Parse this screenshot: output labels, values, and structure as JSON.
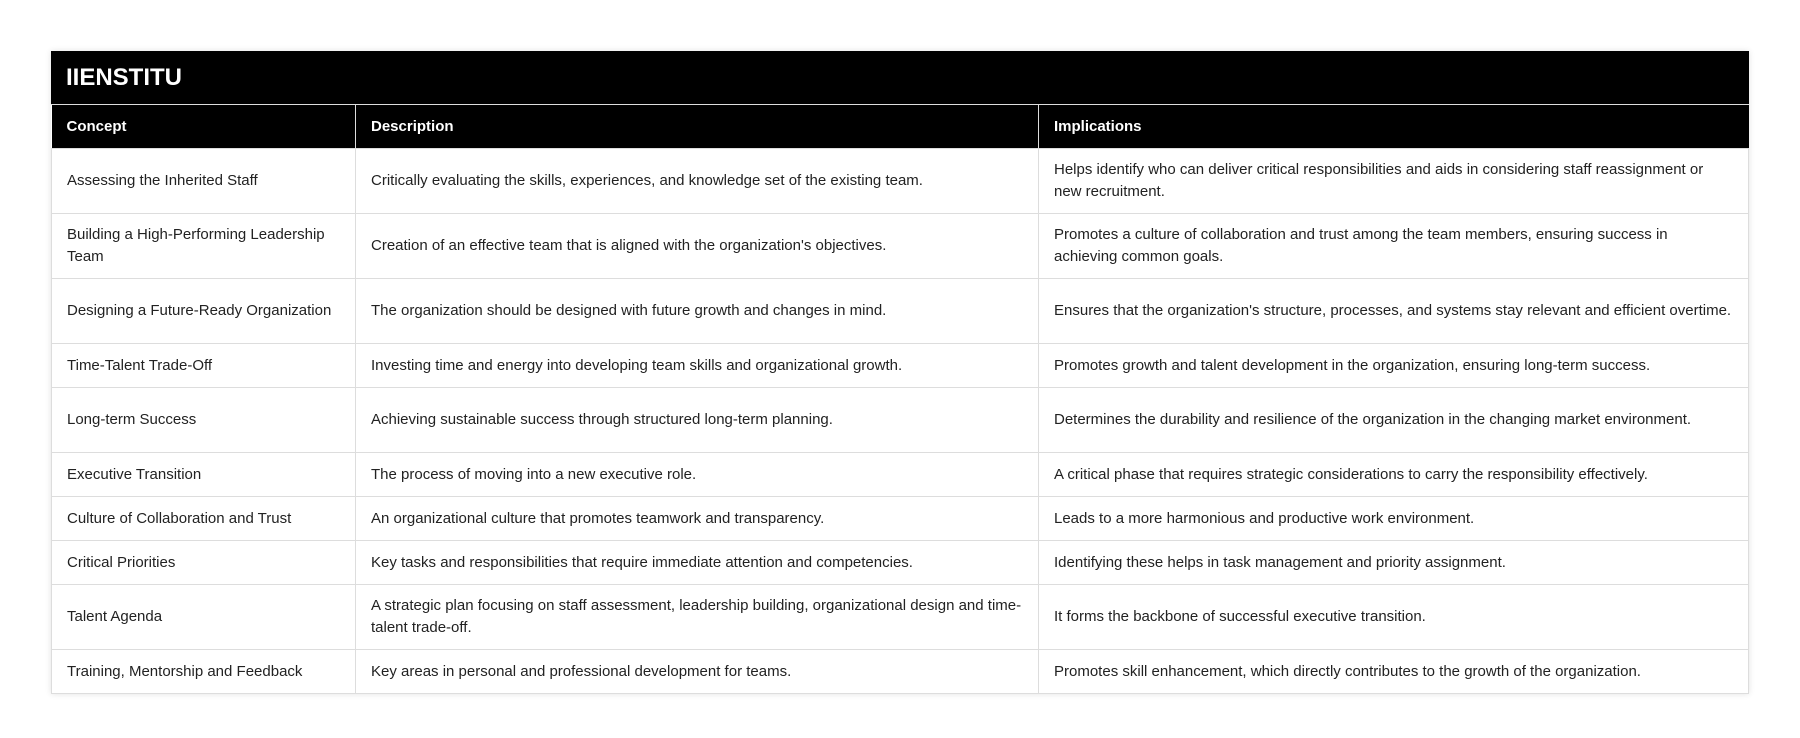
{
  "title": "IIENSTITU",
  "headers": [
    "Concept",
    "Description",
    "Implications"
  ],
  "rows": [
    [
      "Assessing the Inherited Staff",
      "Critically evaluating the skills, experiences, and knowledge set of the existing team.",
      "Helps identify who can deliver critical responsibilities and aids in considering staff reassignment or new recruitment."
    ],
    [
      "Building a High-Performing Leadership Team",
      "Creation of an effective team that is aligned with the organization's objectives.",
      "Promotes a culture of collaboration and trust among the team members, ensuring success in achieving common goals."
    ],
    [
      "Designing a Future-Ready Organization",
      "The organization should be designed with future growth and changes in mind.",
      "Ensures that the organization's structure, processes, and systems stay relevant and efficient overtime."
    ],
    [
      "Time-Talent Trade-Off",
      "Investing time and energy into developing team skills and organizational growth.",
      "Promotes growth and talent development in the organization, ensuring long-term success."
    ],
    [
      "Long-term Success",
      "Achieving sustainable success through structured long-term planning.",
      "Determines the durability and resilience of the organization in the changing market environment."
    ],
    [
      "Executive Transition",
      "The process of moving into a new executive role.",
      "A critical phase that requires strategic considerations to carry the responsibility effectively."
    ],
    [
      "Culture of Collaboration and Trust",
      "An organizational culture that promotes teamwork and transparency.",
      "Leads to a more harmonious and productive work environment."
    ],
    [
      "Critical Priorities",
      "Key tasks and responsibilities that require immediate attention and competencies.",
      "Identifying these helps in task management and priority assignment."
    ],
    [
      "Talent Agenda",
      "A strategic plan focusing on staff assessment, leadership building, organizational design and time-talent trade-off.",
      "It forms the backbone of successful executive transition."
    ],
    [
      "Training, Mentorship and Feedback",
      "Key areas in personal and professional development for teams.",
      "Promotes skill enhancement, which directly contributes to the growth of the organization."
    ]
  ]
}
